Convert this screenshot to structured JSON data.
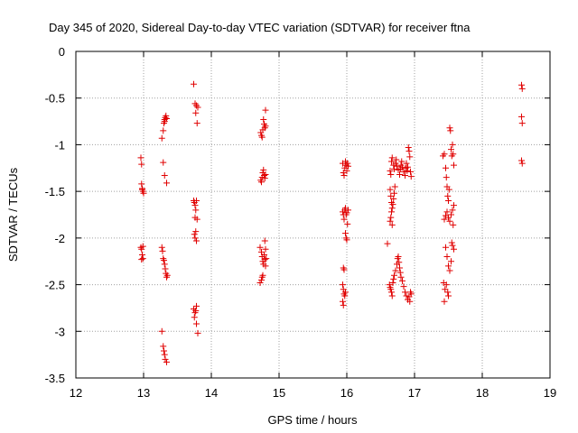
{
  "chart_data": {
    "type": "scatter",
    "title": "Day 345 of 2020, Sidereal Day-to-day VTEC variation (SDTVAR) for receiver ftna",
    "xlabel": "GPS time / hours",
    "ylabel": "SDTVAR / TECUs",
    "xlim": [
      12,
      19
    ],
    "ylim": [
      -3.5,
      0
    ],
    "xticks": [
      12,
      13,
      14,
      15,
      16,
      17,
      18,
      19
    ],
    "yticks": [
      0,
      -0.5,
      -1,
      -1.5,
      -2,
      -2.5,
      -3,
      -3.5
    ],
    "xtick_labels": [
      "12",
      "13",
      "14",
      "15",
      "16",
      "17",
      "18",
      "19"
    ],
    "ytick_labels": [
      "0",
      "-0.5",
      "-1",
      "-1.5",
      "-2",
      "-2.5",
      "-3",
      "-3.5"
    ],
    "grid": true,
    "marker": "plus",
    "color": "#e00000",
    "series": [
      {
        "name": "SDTVAR",
        "points": [
          [
            12.96,
            -1.14
          ],
          [
            12.97,
            -1.21
          ],
          [
            12.97,
            -1.42
          ],
          [
            12.98,
            -1.48
          ],
          [
            12.99,
            -1.5
          ],
          [
            13.0,
            -1.52
          ],
          [
            12.98,
            -1.47
          ],
          [
            12.96,
            -2.1
          ],
          [
            12.97,
            -2.12
          ],
          [
            12.98,
            -2.18
          ],
          [
            12.99,
            -2.22
          ],
          [
            12.97,
            -2.23
          ],
          [
            12.99,
            -2.09
          ],
          [
            13.27,
            -0.93
          ],
          [
            13.29,
            -0.85
          ],
          [
            13.3,
            -0.77
          ],
          [
            13.31,
            -0.73
          ],
          [
            13.32,
            -0.71
          ],
          [
            13.33,
            -0.69
          ],
          [
            13.34,
            -0.72
          ],
          [
            13.31,
            -0.75
          ],
          [
            13.29,
            -1.19
          ],
          [
            13.31,
            -1.33
          ],
          [
            13.34,
            -1.41
          ],
          [
            13.27,
            -2.1
          ],
          [
            13.28,
            -2.14
          ],
          [
            13.29,
            -2.22
          ],
          [
            13.3,
            -2.24
          ],
          [
            13.31,
            -2.28
          ],
          [
            13.32,
            -2.33
          ],
          [
            13.33,
            -2.38
          ],
          [
            13.34,
            -2.42
          ],
          [
            13.35,
            -2.4
          ],
          [
            13.27,
            -3.0
          ],
          [
            13.29,
            -3.16
          ],
          [
            13.3,
            -3.21
          ],
          [
            13.31,
            -3.25
          ],
          [
            13.32,
            -3.3
          ],
          [
            13.34,
            -3.33
          ],
          [
            13.74,
            -0.35
          ],
          [
            13.76,
            -0.56
          ],
          [
            13.78,
            -0.58
          ],
          [
            13.8,
            -0.6
          ],
          [
            13.77,
            -0.66
          ],
          [
            13.79,
            -0.77
          ],
          [
            13.74,
            -1.6
          ],
          [
            13.75,
            -1.62
          ],
          [
            13.76,
            -1.65
          ],
          [
            13.78,
            -1.6
          ],
          [
            13.77,
            -1.7
          ],
          [
            13.76,
            -1.78
          ],
          [
            13.79,
            -1.8
          ],
          [
            13.75,
            -1.96
          ],
          [
            13.76,
            -2.0
          ],
          [
            13.78,
            -2.03
          ],
          [
            13.77,
            -1.93
          ],
          [
            13.74,
            -2.76
          ],
          [
            13.76,
            -2.8
          ],
          [
            13.77,
            -2.78
          ],
          [
            13.78,
            -2.73
          ],
          [
            13.75,
            -2.85
          ],
          [
            13.78,
            -2.92
          ],
          [
            13.8,
            -3.02
          ],
          [
            14.73,
            -0.87
          ],
          [
            14.74,
            -0.9
          ],
          [
            14.75,
            -0.92
          ],
          [
            14.76,
            -0.84
          ],
          [
            14.78,
            -0.78
          ],
          [
            14.79,
            -0.82
          ],
          [
            14.8,
            -0.8
          ],
          [
            14.77,
            -0.73
          ],
          [
            14.8,
            -0.63
          ],
          [
            14.73,
            -1.38
          ],
          [
            14.74,
            -1.4
          ],
          [
            14.75,
            -1.35
          ],
          [
            14.76,
            -1.3
          ],
          [
            14.77,
            -1.27
          ],
          [
            14.78,
            -1.33
          ],
          [
            14.79,
            -1.36
          ],
          [
            14.8,
            -1.32
          ],
          [
            14.72,
            -2.1
          ],
          [
            14.74,
            -2.15
          ],
          [
            14.75,
            -2.2
          ],
          [
            14.76,
            -2.25
          ],
          [
            14.77,
            -2.28
          ],
          [
            14.78,
            -2.18
          ],
          [
            14.79,
            -2.23
          ],
          [
            14.8,
            -2.3
          ],
          [
            14.81,
            -2.22
          ],
          [
            14.79,
            -2.03
          ],
          [
            14.8,
            -2.12
          ],
          [
            14.72,
            -2.48
          ],
          [
            14.74,
            -2.45
          ],
          [
            14.75,
            -2.42
          ],
          [
            14.76,
            -2.4
          ],
          [
            15.94,
            -1.2
          ],
          [
            15.95,
            -1.3
          ],
          [
            15.96,
            -1.33
          ],
          [
            15.97,
            -1.25
          ],
          [
            15.98,
            -1.18
          ],
          [
            15.99,
            -1.22
          ],
          [
            16.0,
            -1.28
          ],
          [
            16.01,
            -1.2
          ],
          [
            16.02,
            -1.23
          ],
          [
            15.94,
            -1.72
          ],
          [
            15.95,
            -1.75
          ],
          [
            15.96,
            -1.8
          ],
          [
            15.97,
            -1.7
          ],
          [
            15.98,
            -1.68
          ],
          [
            15.99,
            -1.75
          ],
          [
            16.0,
            -1.73
          ],
          [
            16.01,
            -1.85
          ],
          [
            16.02,
            -1.7
          ],
          [
            15.98,
            -1.95
          ],
          [
            15.99,
            -2.0
          ],
          [
            16.0,
            -2.02
          ],
          [
            15.95,
            -2.32
          ],
          [
            15.96,
            -2.34
          ],
          [
            15.94,
            -2.5
          ],
          [
            15.95,
            -2.55
          ],
          [
            15.96,
            -2.6
          ],
          [
            15.97,
            -2.62
          ],
          [
            15.98,
            -2.58
          ],
          [
            15.94,
            -2.68
          ],
          [
            15.95,
            -2.72
          ],
          [
            16.64,
            -1.28
          ],
          [
            16.65,
            -1.32
          ],
          [
            16.66,
            -1.18
          ],
          [
            16.67,
            -1.14
          ],
          [
            16.69,
            -1.22
          ],
          [
            16.7,
            -1.26
          ],
          [
            16.72,
            -1.2
          ],
          [
            16.73,
            -1.16
          ],
          [
            16.74,
            -1.23
          ],
          [
            16.76,
            -1.27
          ],
          [
            16.78,
            -1.32
          ],
          [
            16.79,
            -1.26
          ],
          [
            16.8,
            -1.22
          ],
          [
            16.81,
            -1.18
          ],
          [
            16.82,
            -1.24
          ],
          [
            16.84,
            -1.29
          ],
          [
            16.86,
            -1.33
          ],
          [
            16.87,
            -1.25
          ],
          [
            16.88,
            -1.2
          ],
          [
            16.89,
            -1.28
          ],
          [
            16.9,
            -1.24
          ],
          [
            16.91,
            -1.03
          ],
          [
            16.92,
            -1.07
          ],
          [
            16.93,
            -1.13
          ],
          [
            16.94,
            -1.29
          ],
          [
            16.95,
            -1.34
          ],
          [
            16.64,
            -1.48
          ],
          [
            16.65,
            -1.55
          ],
          [
            16.66,
            -1.62
          ],
          [
            16.67,
            -1.68
          ],
          [
            16.68,
            -1.64
          ],
          [
            16.69,
            -1.58
          ],
          [
            16.7,
            -1.52
          ],
          [
            16.71,
            -1.45
          ],
          [
            16.66,
            -1.72
          ],
          [
            16.65,
            -1.78
          ],
          [
            16.64,
            -1.82
          ],
          [
            16.67,
            -1.86
          ],
          [
            16.6,
            -2.06
          ],
          [
            16.63,
            -2.5
          ],
          [
            16.64,
            -2.53
          ],
          [
            16.65,
            -2.55
          ],
          [
            16.66,
            -2.58
          ],
          [
            16.67,
            -2.62
          ],
          [
            16.68,
            -2.48
          ],
          [
            16.69,
            -2.44
          ],
          [
            16.7,
            -2.4
          ],
          [
            16.72,
            -2.35
          ],
          [
            16.74,
            -2.28
          ],
          [
            16.75,
            -2.22
          ],
          [
            16.76,
            -2.2
          ],
          [
            16.77,
            -2.26
          ],
          [
            16.78,
            -2.32
          ],
          [
            16.79,
            -2.37
          ],
          [
            16.8,
            -2.42
          ],
          [
            16.82,
            -2.46
          ],
          [
            16.84,
            -2.52
          ],
          [
            16.86,
            -2.58
          ],
          [
            16.88,
            -2.62
          ],
          [
            16.9,
            -2.66
          ],
          [
            16.92,
            -2.63
          ],
          [
            16.94,
            -2.58
          ],
          [
            16.95,
            -2.6
          ],
          [
            16.93,
            -2.68
          ],
          [
            17.42,
            -1.12
          ],
          [
            17.44,
            -1.1
          ],
          [
            17.46,
            -1.25
          ],
          [
            17.47,
            -1.35
          ],
          [
            17.48,
            -1.45
          ],
          [
            17.49,
            -1.55
          ],
          [
            17.5,
            -1.6
          ],
          [
            17.51,
            -1.48
          ],
          [
            17.52,
            -0.82
          ],
          [
            17.53,
            -0.85
          ],
          [
            17.54,
            -1.05
          ],
          [
            17.55,
            -1.12
          ],
          [
            17.56,
            -1.0
          ],
          [
            17.57,
            -1.1
          ],
          [
            17.58,
            -1.22
          ],
          [
            17.44,
            -1.8
          ],
          [
            17.46,
            -1.76
          ],
          [
            17.48,
            -1.72
          ],
          [
            17.5,
            -1.78
          ],
          [
            17.52,
            -1.82
          ],
          [
            17.54,
            -1.75
          ],
          [
            17.56,
            -1.7
          ],
          [
            17.58,
            -1.65
          ],
          [
            17.57,
            -1.86
          ],
          [
            17.46,
            -2.1
          ],
          [
            17.48,
            -2.2
          ],
          [
            17.5,
            -2.3
          ],
          [
            17.52,
            -2.35
          ],
          [
            17.54,
            -2.25
          ],
          [
            17.55,
            -2.05
          ],
          [
            17.56,
            -2.08
          ],
          [
            17.58,
            -2.12
          ],
          [
            17.43,
            -2.48
          ],
          [
            17.45,
            -2.55
          ],
          [
            17.47,
            -2.5
          ],
          [
            17.49,
            -2.58
          ],
          [
            17.5,
            -2.62
          ],
          [
            17.44,
            -2.68
          ],
          [
            18.58,
            -0.36
          ],
          [
            18.59,
            -0.4
          ],
          [
            18.58,
            -0.7
          ],
          [
            18.59,
            -0.77
          ],
          [
            18.58,
            -1.17
          ],
          [
            18.59,
            -1.2
          ]
        ]
      }
    ]
  }
}
